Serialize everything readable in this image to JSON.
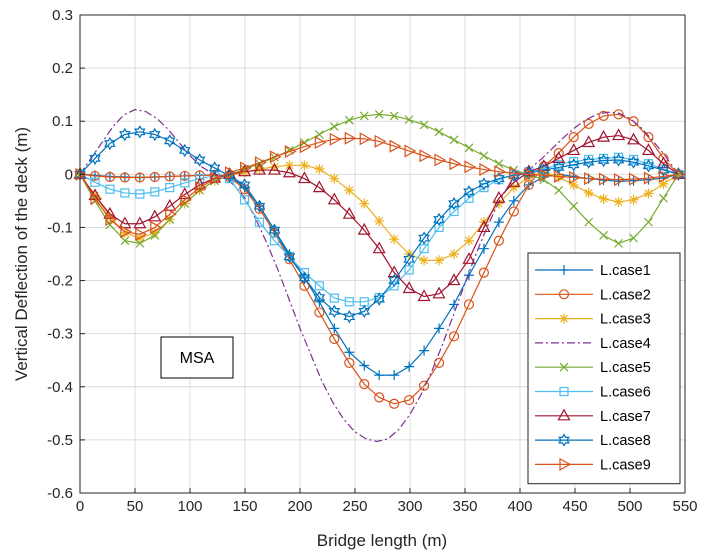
{
  "chart_data": {
    "type": "line",
    "xlabel": "Bridge length (m)",
    "ylabel": "Vertical Deflection of the deck (m)",
    "xlim": [
      0,
      550
    ],
    "ylim": [
      -0.6,
      0.3
    ],
    "xticks": [
      "0",
      "50",
      "100",
      "150",
      "200",
      "250",
      "300",
      "350",
      "400",
      "450",
      "500",
      "550"
    ],
    "yticks": [
      "-0.6",
      "-0.5",
      "-0.4",
      "-0.3",
      "-0.2",
      "-0.1",
      "0",
      "0.1",
      "0.2",
      "0.3"
    ],
    "grid": true,
    "legend_position": "bottom-right",
    "annotation": "MSA",
    "series": [
      {
        "name": "L.case1",
        "color": "#0072BD",
        "marker": "plus",
        "dash": "",
        "x": [
          0,
          13.6,
          27.2,
          40.8,
          54.4,
          68,
          81.6,
          95.2,
          108.8,
          122.4,
          136,
          149.6,
          163.2,
          176.8,
          190.4,
          204,
          217.6,
          231.2,
          244.8,
          258.4,
          272,
          285.6,
          299.2,
          312.8,
          326.4,
          340,
          353.6,
          367.2,
          380.8,
          394.4,
          408,
          421.6,
          435.2,
          448.8,
          462.4,
          476,
          489.6,
          503.2,
          516.8,
          530.4,
          544
        ],
        "y": [
          0,
          -0.002,
          -0.004,
          -0.005,
          -0.006,
          -0.005,
          -0.004,
          -0.003,
          -0.002,
          -0.001,
          -0.003,
          -0.025,
          -0.06,
          -0.105,
          -0.15,
          -0.195,
          -0.24,
          -0.29,
          -0.335,
          -0.36,
          -0.378,
          -0.378,
          -0.362,
          -0.332,
          -0.29,
          -0.245,
          -0.19,
          -0.14,
          -0.09,
          -0.05,
          -0.02,
          -0.005,
          0.0,
          -0.004,
          -0.008,
          -0.011,
          -0.013,
          -0.012,
          -0.01,
          -0.007,
          0
        ]
      },
      {
        "name": "L.case2",
        "color": "#D95319",
        "marker": "circle",
        "dash": "",
        "x": [
          0,
          13.6,
          27.2,
          40.8,
          54.4,
          68,
          81.6,
          95.2,
          108.8,
          122.4,
          136,
          149.6,
          163.2,
          176.8,
          190.4,
          204,
          217.6,
          231.2,
          244.8,
          258.4,
          272,
          285.6,
          299.2,
          312.8,
          326.4,
          340,
          353.6,
          367.2,
          380.8,
          394.4,
          408,
          421.6,
          435.2,
          448.8,
          462.4,
          476,
          489.6,
          503.2,
          516.8,
          530.4,
          544
        ],
        "y": [
          0,
          -0.003,
          -0.005,
          -0.006,
          -0.006,
          -0.005,
          -0.004,
          -0.003,
          -0.002,
          -0.001,
          -0.005,
          -0.028,
          -0.065,
          -0.11,
          -0.16,
          -0.21,
          -0.26,
          -0.31,
          -0.355,
          -0.395,
          -0.42,
          -0.432,
          -0.425,
          -0.398,
          -0.355,
          -0.305,
          -0.245,
          -0.185,
          -0.125,
          -0.07,
          -0.02,
          0.015,
          0.04,
          0.07,
          0.095,
          0.11,
          0.113,
          0.1,
          0.07,
          0.03,
          0
        ]
      },
      {
        "name": "L.case3",
        "color": "#EDB120",
        "marker": "asterisk",
        "dash": "",
        "x": [
          0,
          13.6,
          27.2,
          40.8,
          54.4,
          68,
          81.6,
          95.2,
          108.8,
          122.4,
          136,
          149.6,
          163.2,
          176.8,
          190.4,
          204,
          217.6,
          231.2,
          244.8,
          258.4,
          272,
          285.6,
          299.2,
          312.8,
          326.4,
          340,
          353.6,
          367.2,
          380.8,
          394.4,
          408,
          421.6,
          435.2,
          448.8,
          462.4,
          476,
          489.6,
          503.2,
          516.8,
          530.4,
          544
        ],
        "y": [
          0,
          -0.04,
          -0.08,
          -0.11,
          -0.12,
          -0.11,
          -0.085,
          -0.055,
          -0.03,
          -0.012,
          -0.003,
          0.004,
          0.01,
          0.014,
          0.017,
          0.017,
          0.01,
          -0.008,
          -0.03,
          -0.055,
          -0.088,
          -0.122,
          -0.15,
          -0.162,
          -0.162,
          -0.15,
          -0.125,
          -0.09,
          -0.055,
          -0.025,
          -0.005,
          0.005,
          -0.005,
          -0.02,
          -0.035,
          -0.046,
          -0.052,
          -0.048,
          -0.036,
          -0.018,
          0
        ]
      },
      {
        "name": "L.case4",
        "color": "#7E2F8E",
        "marker": "none",
        "dash": "8,3,2,3",
        "x": [
          0,
          10,
          20,
          30,
          40,
          50,
          60,
          70,
          80,
          90,
          100,
          110,
          120,
          130,
          140,
          150,
          160,
          170,
          180,
          190,
          200,
          210,
          220,
          230,
          240,
          250,
          260,
          270,
          280,
          290,
          300,
          310,
          320,
          330,
          340,
          350,
          360,
          370,
          380,
          390,
          400,
          410,
          420,
          430,
          440,
          450,
          460,
          470,
          480,
          490,
          500,
          510,
          520,
          530,
          540,
          544
        ],
        "y": [
          0,
          0.03,
          0.06,
          0.09,
          0.112,
          0.122,
          0.118,
          0.105,
          0.085,
          0.06,
          0.035,
          0.015,
          0.002,
          -0.005,
          -0.02,
          -0.045,
          -0.085,
          -0.13,
          -0.18,
          -0.235,
          -0.29,
          -0.34,
          -0.39,
          -0.43,
          -0.462,
          -0.485,
          -0.498,
          -0.503,
          -0.498,
          -0.48,
          -0.452,
          -0.415,
          -0.37,
          -0.318,
          -0.262,
          -0.205,
          -0.15,
          -0.1,
          -0.055,
          -0.02,
          0.0,
          0.012,
          0.03,
          0.05,
          0.07,
          0.088,
          0.103,
          0.113,
          0.117,
          0.115,
          0.105,
          0.088,
          0.065,
          0.04,
          0.012,
          0
        ]
      },
      {
        "name": "L.case5",
        "color": "#77AC30",
        "marker": "x",
        "dash": "",
        "x": [
          0,
          13.6,
          27.2,
          40.8,
          54.4,
          68,
          81.6,
          95.2,
          108.8,
          122.4,
          136,
          149.6,
          163.2,
          176.8,
          190.4,
          204,
          217.6,
          231.2,
          244.8,
          258.4,
          272,
          285.6,
          299.2,
          312.8,
          326.4,
          340,
          353.6,
          367.2,
          380.8,
          394.4,
          408,
          421.6,
          435.2,
          448.8,
          462.4,
          476,
          489.6,
          503.2,
          516.8,
          530.4,
          544
        ],
        "y": [
          0,
          -0.05,
          -0.095,
          -0.125,
          -0.13,
          -0.115,
          -0.085,
          -0.055,
          -0.03,
          -0.012,
          -0.002,
          0.01,
          0.02,
          0.032,
          0.045,
          0.06,
          0.075,
          0.09,
          0.102,
          0.11,
          0.113,
          0.11,
          0.103,
          0.093,
          0.08,
          0.065,
          0.05,
          0.035,
          0.02,
          0.008,
          0.0,
          -0.01,
          -0.03,
          -0.06,
          -0.09,
          -0.115,
          -0.13,
          -0.12,
          -0.09,
          -0.045,
          0
        ]
      },
      {
        "name": "L.case6",
        "color": "#4DBEEE",
        "marker": "square",
        "dash": "",
        "x": [
          0,
          13.6,
          27.2,
          40.8,
          54.4,
          68,
          81.6,
          95.2,
          108.8,
          122.4,
          136,
          149.6,
          163.2,
          176.8,
          190.4,
          204,
          217.6,
          231.2,
          244.8,
          258.4,
          272,
          285.6,
          299.2,
          312.8,
          326.4,
          340,
          353.6,
          367.2,
          380.8,
          394.4,
          408,
          421.6,
          435.2,
          448.8,
          462.4,
          476,
          489.6,
          503.2,
          516.8,
          530.4,
          544
        ],
        "y": [
          0,
          -0.015,
          -0.028,
          -0.035,
          -0.037,
          -0.033,
          -0.025,
          -0.016,
          -0.008,
          -0.003,
          -0.008,
          -0.048,
          -0.09,
          -0.125,
          -0.155,
          -0.185,
          -0.21,
          -0.233,
          -0.24,
          -0.24,
          -0.232,
          -0.21,
          -0.18,
          -0.14,
          -0.1,
          -0.07,
          -0.045,
          -0.025,
          -0.01,
          0.0,
          0.005,
          0.01,
          0.018,
          0.024,
          0.028,
          0.03,
          0.032,
          0.028,
          0.02,
          0.01,
          0
        ]
      },
      {
        "name": "L.case7",
        "color": "#A2142F",
        "marker": "triangle",
        "dash": "",
        "x": [
          0,
          13.6,
          27.2,
          40.8,
          54.4,
          68,
          81.6,
          95.2,
          108.8,
          122.4,
          136,
          149.6,
          163.2,
          176.8,
          190.4,
          204,
          217.6,
          231.2,
          244.8,
          258.4,
          272,
          285.6,
          299.2,
          312.8,
          326.4,
          340,
          353.6,
          367.2,
          380.8,
          394.4,
          408,
          421.6,
          435.2,
          448.8,
          462.4,
          476,
          489.6,
          503.2,
          516.8,
          530.4,
          544
        ],
        "y": [
          0,
          -0.04,
          -0.075,
          -0.093,
          -0.093,
          -0.08,
          -0.06,
          -0.038,
          -0.02,
          -0.007,
          0.0,
          0.005,
          0.008,
          0.008,
          0.003,
          -0.008,
          -0.025,
          -0.048,
          -0.075,
          -0.105,
          -0.14,
          -0.185,
          -0.215,
          -0.23,
          -0.225,
          -0.2,
          -0.16,
          -0.1,
          -0.045,
          -0.015,
          0.005,
          0.015,
          0.03,
          0.045,
          0.06,
          0.07,
          0.073,
          0.065,
          0.045,
          0.02,
          0
        ]
      },
      {
        "name": "L.case8",
        "color": "#0072BD",
        "marker": "hexagram",
        "dash": "",
        "x": [
          0,
          13.6,
          27.2,
          40.8,
          54.4,
          68,
          81.6,
          95.2,
          108.8,
          122.4,
          136,
          149.6,
          163.2,
          176.8,
          190.4,
          204,
          217.6,
          231.2,
          244.8,
          258.4,
          272,
          285.6,
          299.2,
          312.8,
          326.4,
          340,
          353.6,
          367.2,
          380.8,
          394.4,
          408,
          421.6,
          435.2,
          448.8,
          462.4,
          476,
          489.6,
          503.2,
          516.8,
          530.4,
          544
        ],
        "y": [
          0,
          0.03,
          0.058,
          0.075,
          0.08,
          0.075,
          0.063,
          0.045,
          0.027,
          0.012,
          -0.003,
          -0.02,
          -0.06,
          -0.105,
          -0.155,
          -0.195,
          -0.232,
          -0.258,
          -0.268,
          -0.258,
          -0.235,
          -0.2,
          -0.16,
          -0.12,
          -0.085,
          -0.055,
          -0.033,
          -0.018,
          -0.008,
          -0.002,
          0.002,
          0.008,
          0.013,
          0.018,
          0.023,
          0.026,
          0.027,
          0.023,
          0.016,
          0.008,
          0
        ]
      },
      {
        "name": "L.case9",
        "color": "#D95319",
        "marker": "triangle-right",
        "dash": "",
        "x": [
          0,
          13.6,
          27.2,
          40.8,
          54.4,
          68,
          81.6,
          95.2,
          108.8,
          122.4,
          136,
          149.6,
          163.2,
          176.8,
          190.4,
          204,
          217.6,
          231.2,
          244.8,
          258.4,
          272,
          285.6,
          299.2,
          312.8,
          326.4,
          340,
          353.6,
          367.2,
          380.8,
          394.4,
          408,
          421.6,
          435.2,
          448.8,
          462.4,
          476,
          489.6,
          503.2,
          516.8,
          530.4,
          544
        ],
        "y": [
          0,
          -0.045,
          -0.085,
          -0.108,
          -0.113,
          -0.1,
          -0.075,
          -0.048,
          -0.025,
          -0.008,
          0.003,
          0.012,
          0.022,
          0.033,
          0.043,
          0.052,
          0.06,
          0.066,
          0.068,
          0.067,
          0.062,
          0.053,
          0.044,
          0.035,
          0.027,
          0.02,
          0.014,
          0.009,
          0.005,
          0.002,
          0.0,
          -0.002,
          -0.004,
          -0.006,
          -0.008,
          -0.009,
          -0.01,
          -0.009,
          -0.007,
          -0.004,
          0
        ]
      }
    ]
  }
}
